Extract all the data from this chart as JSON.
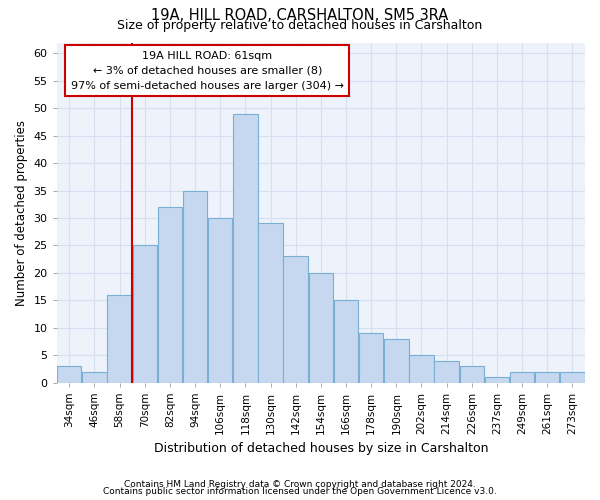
{
  "title1": "19A, HILL ROAD, CARSHALTON, SM5 3RA",
  "title2": "Size of property relative to detached houses in Carshalton",
  "xlabel": "Distribution of detached houses by size in Carshalton",
  "ylabel": "Number of detached properties",
  "categories": [
    "34sqm",
    "46sqm",
    "58sqm",
    "70sqm",
    "82sqm",
    "94sqm",
    "106sqm",
    "118sqm",
    "130sqm",
    "142sqm",
    "154sqm",
    "166sqm",
    "178sqm",
    "190sqm",
    "202sqm",
    "214sqm",
    "226sqm",
    "237sqm",
    "249sqm",
    "261sqm",
    "273sqm"
  ],
  "values": [
    3,
    2,
    16,
    25,
    32,
    35,
    30,
    49,
    29,
    23,
    20,
    15,
    9,
    8,
    5,
    4,
    3,
    1,
    2,
    2,
    2
  ],
  "bar_color": "#c5d8f0",
  "bar_edge_color": "#7aafd4",
  "red_line_index": 2,
  "annotation_line1": "19A HILL ROAD: 61sqm",
  "annotation_line2": "← 3% of detached houses are smaller (8)",
  "annotation_line3": "97% of semi-detached houses are larger (304) →",
  "annotation_box_color": "#ffffff",
  "annotation_box_edge": "#cc0000",
  "ylim": [
    0,
    62
  ],
  "yticks": [
    0,
    5,
    10,
    15,
    20,
    25,
    30,
    35,
    40,
    45,
    50,
    55,
    60
  ],
  "grid_color": "#d4dff0",
  "footer1": "Contains HM Land Registry data © Crown copyright and database right 2024.",
  "footer2": "Contains public sector information licensed under the Open Government Licence v3.0.",
  "bg_color": "#edf2fb",
  "plot_bg_color": "#edf2fb"
}
